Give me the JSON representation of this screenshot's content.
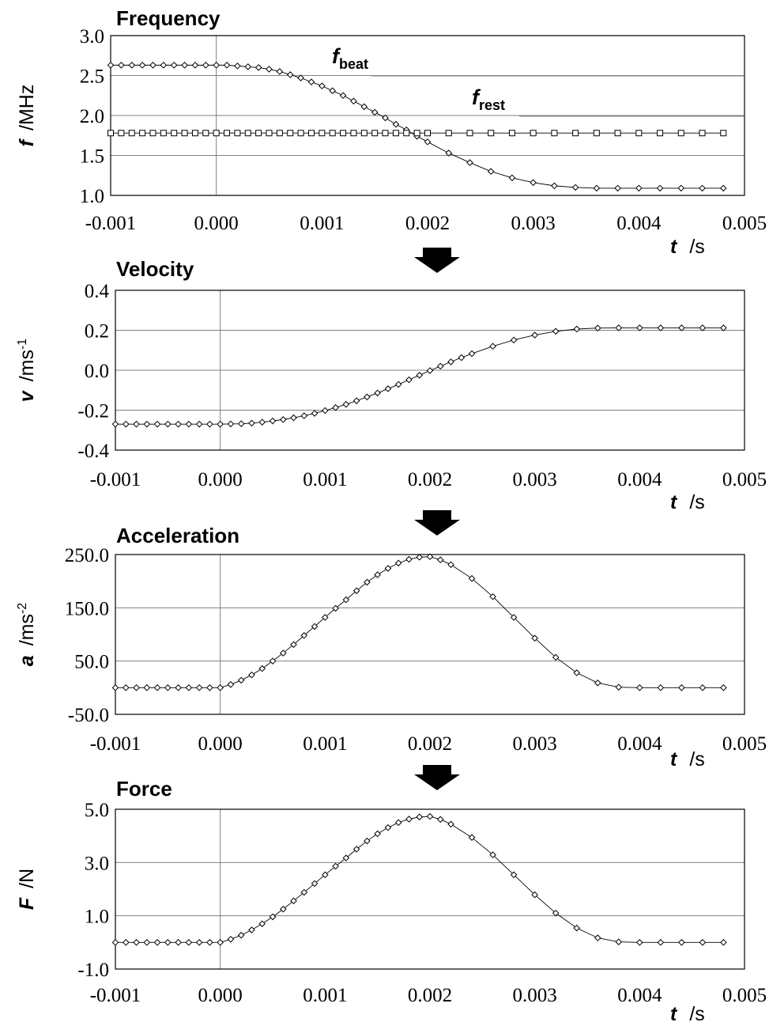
{
  "figure": {
    "arrow_color": "#000000",
    "line_color": "#000000",
    "grid_color": "#808080"
  },
  "chart_data": [
    {
      "type": "line",
      "title": "Frequency",
      "ylabel_var": "f",
      "ylabel_unit": "/MHz",
      "xlabel_var": "t",
      "xlabel_unit": "/s",
      "xlim": [
        -0.001,
        0.005
      ],
      "ylim": [
        1.0,
        3.0
      ],
      "x_ticks": [
        "-0.001",
        "0.000",
        "0.001",
        "0.002",
        "0.003",
        "0.004",
        "0.005"
      ],
      "y_ticks": [
        "3.0",
        "2.5",
        "2.0",
        "1.5",
        "1.0"
      ],
      "grid": true,
      "annotations": [
        {
          "var": "f",
          "sub": "beat",
          "series": "f_beat"
        },
        {
          "var": "f",
          "sub": "rest",
          "series": "f_rest"
        }
      ],
      "series": [
        {
          "key": "f_beat",
          "marker": "diamond",
          "x": [
            -0.001,
            -0.0009,
            -0.0008,
            -0.0007,
            -0.0006,
            -0.0005,
            -0.0004,
            -0.0003,
            -0.0002,
            -0.0001,
            0.0,
            0.0001,
            0.0002,
            0.0003,
            0.0004,
            0.0005,
            0.0006,
            0.0007,
            0.0008,
            0.0009,
            0.001,
            0.0011,
            0.0012,
            0.0013,
            0.0014,
            0.0015,
            0.0016,
            0.0017,
            0.0018,
            0.0019,
            0.002,
            0.0022,
            0.0024,
            0.0026,
            0.0028,
            0.003,
            0.0032,
            0.0034,
            0.0036,
            0.0038,
            0.004,
            0.0042,
            0.0044,
            0.0046,
            0.0048
          ],
          "y": [
            2.63,
            2.63,
            2.63,
            2.63,
            2.63,
            2.63,
            2.63,
            2.63,
            2.63,
            2.63,
            2.63,
            2.63,
            2.62,
            2.61,
            2.6,
            2.58,
            2.55,
            2.51,
            2.47,
            2.42,
            2.37,
            2.31,
            2.25,
            2.18,
            2.11,
            2.04,
            1.97,
            1.89,
            1.82,
            1.74,
            1.67,
            1.53,
            1.41,
            1.3,
            1.22,
            1.16,
            1.12,
            1.1,
            1.09,
            1.09,
            1.09,
            1.09,
            1.09,
            1.09,
            1.09
          ]
        },
        {
          "key": "f_rest",
          "marker": "square",
          "x": [
            -0.001,
            -0.0009,
            -0.0008,
            -0.0007,
            -0.0006,
            -0.0005,
            -0.0004,
            -0.0003,
            -0.0002,
            -0.0001,
            0.0,
            0.0001,
            0.0002,
            0.0003,
            0.0004,
            0.0005,
            0.0006,
            0.0007,
            0.0008,
            0.0009,
            0.001,
            0.0011,
            0.0012,
            0.0013,
            0.0014,
            0.0015,
            0.0016,
            0.0017,
            0.0018,
            0.0019,
            0.002,
            0.0022,
            0.0024,
            0.0026,
            0.0028,
            0.003,
            0.0032,
            0.0034,
            0.0036,
            0.0038,
            0.004,
            0.0042,
            0.0044,
            0.0046,
            0.0048
          ],
          "y": [
            1.78,
            1.78,
            1.78,
            1.78,
            1.78,
            1.78,
            1.78,
            1.78,
            1.78,
            1.78,
            1.78,
            1.78,
            1.78,
            1.78,
            1.78,
            1.78,
            1.78,
            1.78,
            1.78,
            1.78,
            1.78,
            1.78,
            1.78,
            1.78,
            1.78,
            1.78,
            1.78,
            1.78,
            1.78,
            1.78,
            1.78,
            1.78,
            1.78,
            1.78,
            1.78,
            1.78,
            1.78,
            1.78,
            1.78,
            1.78,
            1.78,
            1.78,
            1.78,
            1.78,
            1.78
          ]
        }
      ]
    },
    {
      "type": "line",
      "title": "Velocity",
      "ylabel_var": "v",
      "ylabel_unit": "/ms",
      "ylabel_unit_sup": "-1",
      "xlabel_var": "t",
      "xlabel_unit": "/s",
      "xlim": [
        -0.001,
        0.005
      ],
      "ylim": [
        -0.4,
        0.4
      ],
      "x_ticks": [
        "-0.001",
        "0.000",
        "0.001",
        "0.002",
        "0.003",
        "0.004",
        "0.005"
      ],
      "y_ticks": [
        "0.4",
        "0.2",
        "0.0",
        "-0.2",
        "-0.4"
      ],
      "grid": true,
      "series": [
        {
          "key": "v",
          "marker": "diamond",
          "x": [
            -0.001,
            -0.0009,
            -0.0008,
            -0.0007,
            -0.0006,
            -0.0005,
            -0.0004,
            -0.0003,
            -0.0002,
            -0.0001,
            0.0,
            0.0001,
            0.0002,
            0.0003,
            0.0004,
            0.0005,
            0.0006,
            0.0007,
            0.0008,
            0.0009,
            0.001,
            0.0011,
            0.0012,
            0.0013,
            0.0014,
            0.0015,
            0.0016,
            0.0017,
            0.0018,
            0.0019,
            0.002,
            0.0021,
            0.0022,
            0.0023,
            0.0024,
            0.0026,
            0.0028,
            0.003,
            0.0032,
            0.0034,
            0.0036,
            0.0038,
            0.004,
            0.0042,
            0.0044,
            0.0046,
            0.0048
          ],
          "y": [
            -0.27,
            -0.27,
            -0.27,
            -0.27,
            -0.27,
            -0.27,
            -0.27,
            -0.27,
            -0.27,
            -0.27,
            -0.27,
            -0.269,
            -0.268,
            -0.265,
            -0.26,
            -0.254,
            -0.247,
            -0.238,
            -0.228,
            -0.216,
            -0.202,
            -0.187,
            -0.171,
            -0.153,
            -0.134,
            -0.114,
            -0.093,
            -0.071,
            -0.048,
            -0.025,
            -0.002,
            0.02,
            0.042,
            0.063,
            0.083,
            0.12,
            0.151,
            0.176,
            0.195,
            0.206,
            0.211,
            0.212,
            0.212,
            0.212,
            0.212,
            0.212,
            0.212
          ]
        }
      ]
    },
    {
      "type": "line",
      "title": "Acceleration",
      "ylabel_var": "a",
      "ylabel_unit": "/ms",
      "ylabel_unit_sup": "-2",
      "xlabel_var": "t",
      "xlabel_unit": "/s",
      "xlim": [
        -0.001,
        0.005
      ],
      "ylim": [
        -50,
        250
      ],
      "x_ticks": [
        "-0.001",
        "0.000",
        "0.001",
        "0.002",
        "0.003",
        "0.004",
        "0.005"
      ],
      "y_ticks": [
        "250.0",
        "150.0",
        "50.0",
        "-50.0"
      ],
      "grid": true,
      "series": [
        {
          "key": "a",
          "marker": "diamond",
          "x": [
            -0.001,
            -0.0009,
            -0.0008,
            -0.0007,
            -0.0006,
            -0.0005,
            -0.0004,
            -0.0003,
            -0.0002,
            -0.0001,
            0.0,
            0.0001,
            0.0002,
            0.0003,
            0.0004,
            0.0005,
            0.0006,
            0.0007,
            0.0008,
            0.0009,
            0.001,
            0.0011,
            0.0012,
            0.0013,
            0.0014,
            0.0015,
            0.0016,
            0.0017,
            0.0018,
            0.0019,
            0.002,
            0.0021,
            0.0022,
            0.0024,
            0.0026,
            0.0028,
            0.003,
            0.0032,
            0.0034,
            0.0036,
            0.0038,
            0.004,
            0.0042,
            0.0044,
            0.0046,
            0.0048
          ],
          "y": [
            0,
            0,
            0,
            0,
            0,
            0,
            0,
            0,
            0,
            0,
            0,
            6,
            14,
            24,
            36,
            50,
            65,
            81,
            98,
            115,
            132,
            149,
            165,
            182,
            198,
            212,
            224,
            234,
            241,
            245,
            246,
            240,
            231,
            205,
            171,
            132,
            93,
            57,
            28,
            9,
            1,
            0,
            0,
            0,
            0,
            0
          ]
        }
      ]
    },
    {
      "type": "line",
      "title": "Force",
      "ylabel_var": "F",
      "ylabel_unit": "/N",
      "xlabel_var": "t",
      "xlabel_unit": "/s",
      "xlim": [
        -0.001,
        0.005
      ],
      "ylim": [
        -1.0,
        5.0
      ],
      "x_ticks": [
        "-0.001",
        "0.000",
        "0.001",
        "0.002",
        "0.003",
        "0.004",
        "0.005"
      ],
      "y_ticks": [
        "5.0",
        "3.0",
        "1.0",
        "-1.0"
      ],
      "grid": true,
      "series": [
        {
          "key": "F",
          "marker": "diamond",
          "x": [
            -0.001,
            -0.0009,
            -0.0008,
            -0.0007,
            -0.0006,
            -0.0005,
            -0.0004,
            -0.0003,
            -0.0002,
            -0.0001,
            0.0,
            0.0001,
            0.0002,
            0.0003,
            0.0004,
            0.0005,
            0.0006,
            0.0007,
            0.0008,
            0.0009,
            0.001,
            0.0011,
            0.0012,
            0.0013,
            0.0014,
            0.0015,
            0.0016,
            0.0017,
            0.0018,
            0.0019,
            0.002,
            0.0021,
            0.0022,
            0.0024,
            0.0026,
            0.0028,
            0.003,
            0.0032,
            0.0034,
            0.0036,
            0.0038,
            0.004,
            0.0042,
            0.0044,
            0.0046,
            0.0048
          ],
          "y": [
            0,
            0,
            0,
            0,
            0,
            0,
            0,
            0,
            0,
            0,
            0,
            0.12,
            0.27,
            0.47,
            0.7,
            0.96,
            1.25,
            1.56,
            1.88,
            2.21,
            2.54,
            2.86,
            3.17,
            3.5,
            3.81,
            4.08,
            4.31,
            4.5,
            4.63,
            4.71,
            4.73,
            4.62,
            4.44,
            3.94,
            3.29,
            2.54,
            1.79,
            1.1,
            0.54,
            0.17,
            0.02,
            0,
            0,
            0,
            0,
            0
          ]
        }
      ]
    }
  ]
}
